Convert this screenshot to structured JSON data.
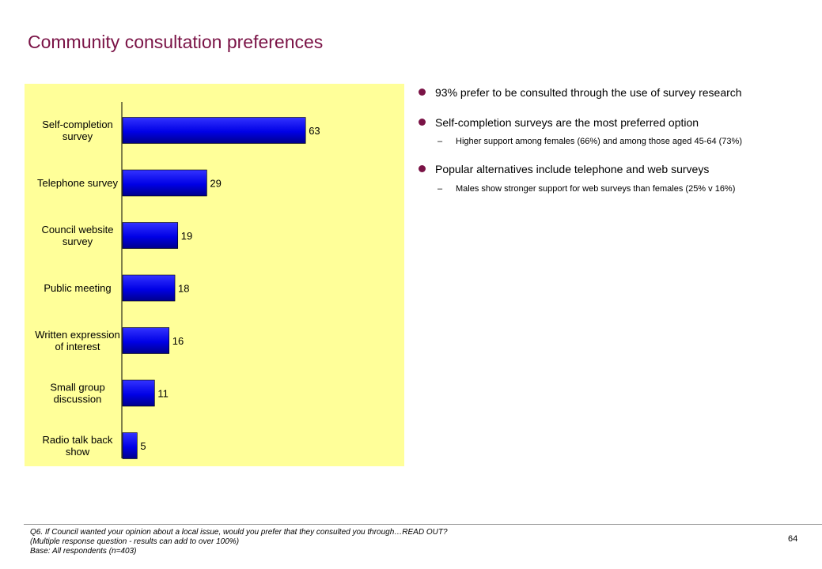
{
  "title": "Community consultation preferences",
  "chart_data": {
    "type": "bar",
    "orientation": "horizontal",
    "categories": [
      [
        "Self-completion",
        "survey"
      ],
      [
        "Telephone survey"
      ],
      [
        "Council website",
        "survey"
      ],
      [
        "Public meeting"
      ],
      [
        "Written expression",
        "of interest"
      ],
      [
        "Small group",
        "discussion"
      ],
      [
        "Radio talk back",
        "show"
      ]
    ],
    "values": [
      63,
      29,
      19,
      18,
      16,
      11,
      5
    ],
    "value_labels": [
      "63",
      "29",
      "19",
      "18",
      "16",
      "11",
      "5"
    ],
    "xlim": [
      0,
      100
    ],
    "grid": false,
    "legend": "none",
    "colors": {
      "bar": "#0000e6",
      "bar_highlight": "#3333ff",
      "bar_shadow": "#00008a",
      "background": "#ffff99"
    }
  },
  "bullets": [
    {
      "text": "93% prefer to be consulted through the use of survey research",
      "subs": []
    },
    {
      "text": "Self-completion surveys are the most preferred option",
      "subs": [
        "Higher support among females (66%) and among those aged 45-64 (73%)"
      ]
    },
    {
      "text": "Popular alternatives include telephone and web surveys",
      "subs": [
        "Males show stronger support for web surveys than females (25% v 16%)"
      ]
    }
  ],
  "sub_dash": "–",
  "footnote": {
    "line1": "Q6. If Council wanted your opinion about a local issue, would you prefer that they consulted you through…READ OUT?",
    "line2": "(Multiple response question - results can add to over 100%)",
    "line3": "Base: All respondents (n=403)"
  },
  "page_number": "64",
  "colors": {
    "title": "#7a1346",
    "bullet_dot": "#7a1346"
  }
}
